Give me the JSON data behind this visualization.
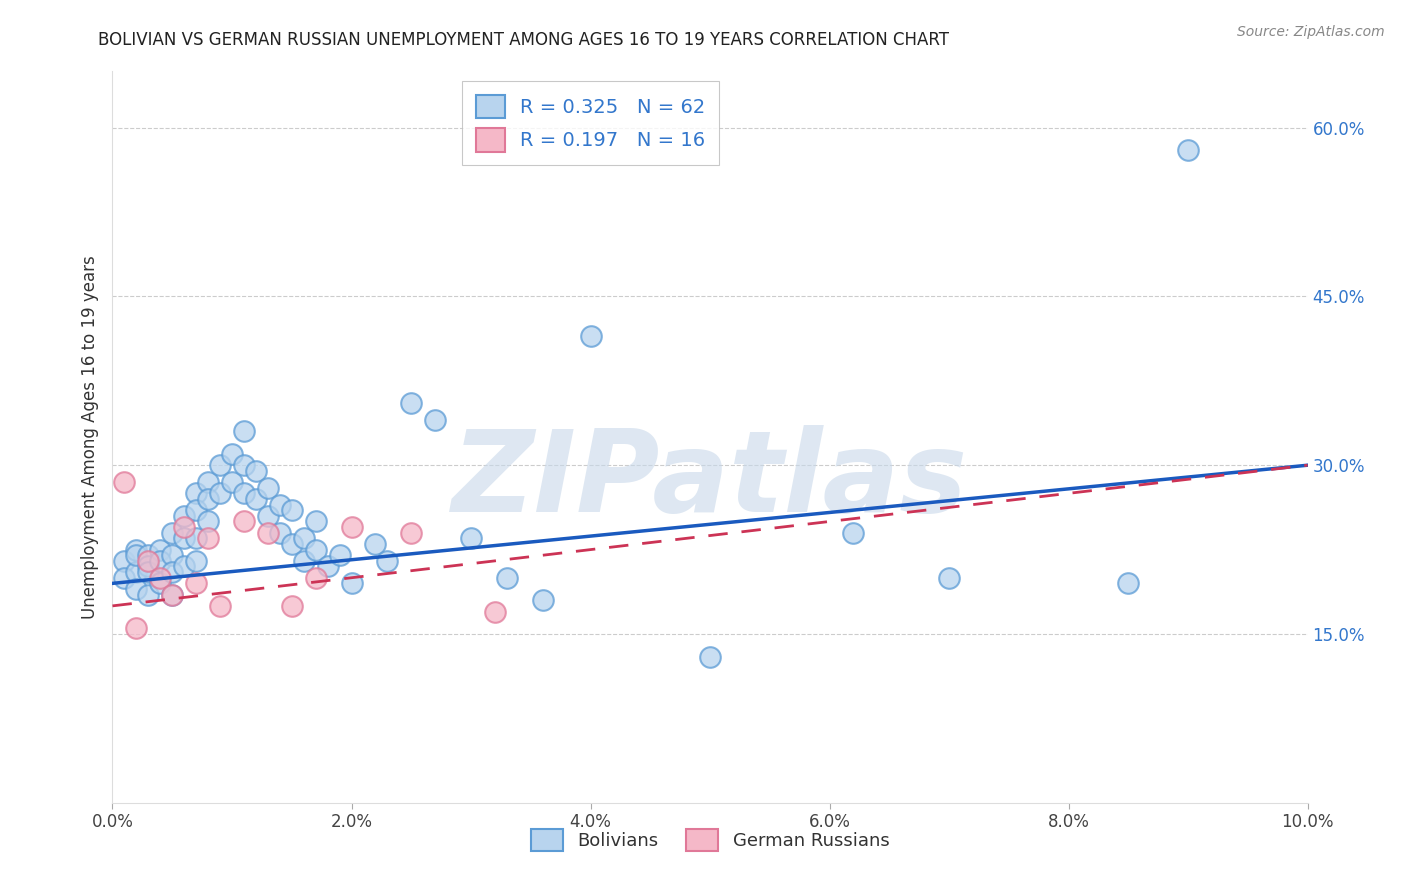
{
  "title": "BOLIVIAN VS GERMAN RUSSIAN UNEMPLOYMENT AMONG AGES 16 TO 19 YEARS CORRELATION CHART",
  "source": "Source: ZipAtlas.com",
  "ylabel": "Unemployment Among Ages 16 to 19 years",
  "xlim": [
    0.0,
    0.1
  ],
  "ylim": [
    0.0,
    0.65
  ],
  "xtick_vals": [
    0.0,
    0.02,
    0.04,
    0.06,
    0.08,
    0.1
  ],
  "xticklabels": [
    "0.0%",
    "2.0%",
    "4.0%",
    "6.0%",
    "8.0%",
    "10.0%"
  ],
  "yticks_right": [
    0.15,
    0.3,
    0.45,
    0.6
  ],
  "ytick_right_labels": [
    "15.0%",
    "30.0%",
    "45.0%",
    "60.0%"
  ],
  "bolivian_face": "#b8d4ee",
  "bolivian_edge": "#5b9bd5",
  "gr_face": "#f5b8c8",
  "gr_edge": "#e07898",
  "trend_blue": "#1a5abf",
  "trend_pink": "#cc3355",
  "bolivian_R": 0.325,
  "bolivian_N": 62,
  "gr_R": 0.197,
  "gr_N": 16,
  "watermark": "ZIPatlas",
  "label_bolivian": "Bolivians",
  "label_gr": "German Russians",
  "trend_blue_y0": 0.195,
  "trend_blue_y1": 0.3,
  "trend_pink_y0": 0.175,
  "trend_pink_y1": 0.3,
  "boli_x": [
    0.001,
    0.001,
    0.002,
    0.002,
    0.002,
    0.002,
    0.003,
    0.003,
    0.003,
    0.003,
    0.004,
    0.004,
    0.004,
    0.005,
    0.005,
    0.005,
    0.005,
    0.006,
    0.006,
    0.006,
    0.007,
    0.007,
    0.007,
    0.007,
    0.008,
    0.008,
    0.008,
    0.009,
    0.009,
    0.01,
    0.01,
    0.011,
    0.011,
    0.011,
    0.012,
    0.012,
    0.013,
    0.013,
    0.014,
    0.014,
    0.015,
    0.015,
    0.016,
    0.016,
    0.017,
    0.017,
    0.018,
    0.019,
    0.02,
    0.022,
    0.023,
    0.025,
    0.027,
    0.03,
    0.033,
    0.036,
    0.04,
    0.05,
    0.062,
    0.07,
    0.085,
    0.09
  ],
  "boli_y": [
    0.215,
    0.2,
    0.225,
    0.205,
    0.22,
    0.19,
    0.22,
    0.21,
    0.185,
    0.205,
    0.225,
    0.215,
    0.195,
    0.24,
    0.22,
    0.205,
    0.185,
    0.255,
    0.235,
    0.21,
    0.275,
    0.26,
    0.235,
    0.215,
    0.285,
    0.27,
    0.25,
    0.3,
    0.275,
    0.31,
    0.285,
    0.33,
    0.3,
    0.275,
    0.295,
    0.27,
    0.28,
    0.255,
    0.265,
    0.24,
    0.26,
    0.23,
    0.235,
    0.215,
    0.25,
    0.225,
    0.21,
    0.22,
    0.195,
    0.23,
    0.215,
    0.355,
    0.34,
    0.235,
    0.2,
    0.18,
    0.415,
    0.13,
    0.24,
    0.2,
    0.195,
    0.58
  ],
  "gr_x": [
    0.001,
    0.002,
    0.003,
    0.004,
    0.005,
    0.006,
    0.007,
    0.008,
    0.009,
    0.011,
    0.013,
    0.015,
    0.017,
    0.02,
    0.025,
    0.032
  ],
  "gr_y": [
    0.285,
    0.155,
    0.215,
    0.2,
    0.185,
    0.245,
    0.195,
    0.235,
    0.175,
    0.25,
    0.24,
    0.175,
    0.2,
    0.245,
    0.24,
    0.17
  ]
}
